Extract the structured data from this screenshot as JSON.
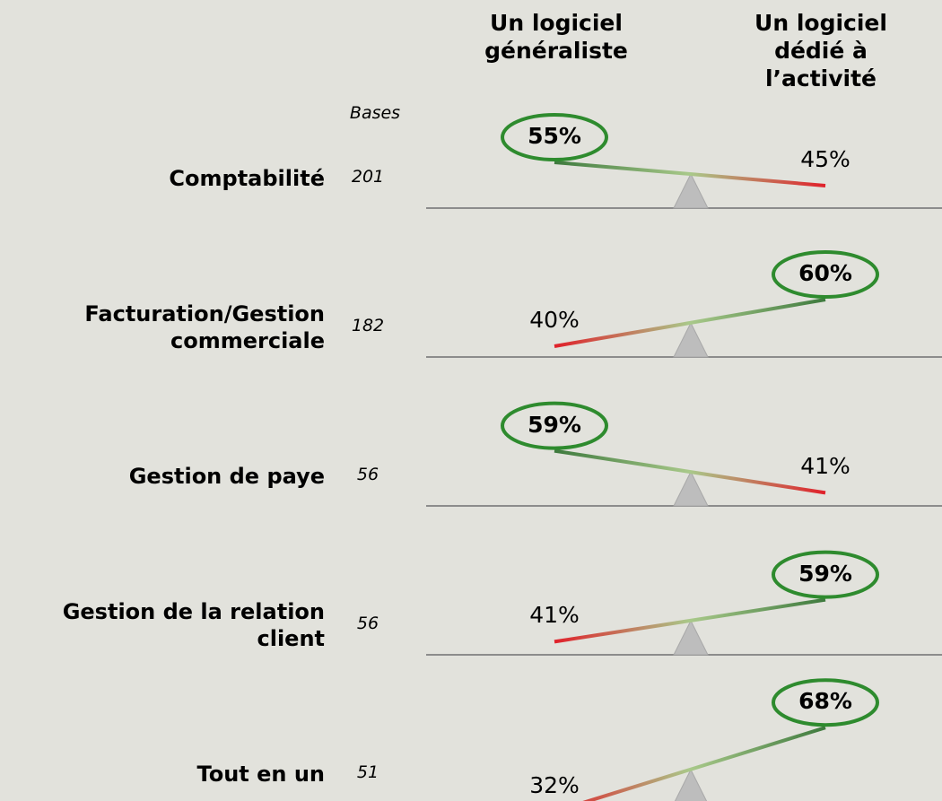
{
  "chart_data": {
    "type": "seesaw",
    "bases_label": "Bases",
    "categories": [
      "Comptabilité",
      "Facturation/Gestion commerciale",
      "Gestion de paye",
      "Gestion de la relation client",
      "Tout en un"
    ],
    "bases": [
      201,
      182,
      56,
      56,
      51
    ],
    "series": [
      {
        "name": "Un logiciel généraliste",
        "values": [
          55,
          40,
          59,
          41,
          32
        ],
        "value_labels": [
          "55%",
          "40%",
          "59%",
          "41%",
          "32%"
        ]
      },
      {
        "name": "Un logiciel dédié à l’activité",
        "values": [
          45,
          60,
          41,
          59,
          68
        ],
        "value_labels": [
          "45%",
          "60%",
          "41%",
          "59%",
          "68%"
        ]
      }
    ],
    "colors": {
      "high": "#3e7a3e",
      "mid": "#a9c98a",
      "low": "#e0202a",
      "circle": "#2e8b2e",
      "pivot": "#bdbdbd",
      "ground": "#8c8c8c"
    }
  }
}
